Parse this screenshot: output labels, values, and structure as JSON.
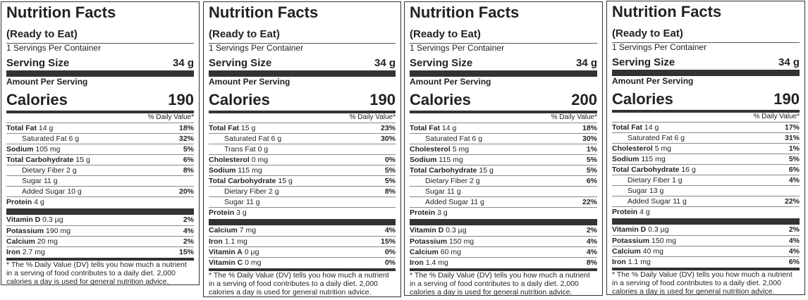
{
  "panels": [
    {
      "title": "Nutrition Facts",
      "subtitle": "(Ready to Eat)",
      "servings_per_container": "1 Servings Per Container",
      "serving_size_label": "Serving Size",
      "serving_size_value": "34 g",
      "amount_per_serving": "Amount Per Serving",
      "calories_label": "Calories",
      "calories_value": "190",
      "dv_header": "% Daily Value*",
      "nutrients": [
        {
          "name": "Total Fat",
          "amount": "14 g",
          "pct": "18%",
          "bold": true
        },
        {
          "name": "Saturated Fat",
          "amount": "6 g",
          "pct": "32%",
          "bold": false
        },
        {
          "name": "Sodium",
          "amount": "105 mg",
          "pct": "5%",
          "bold": true
        },
        {
          "name": "Total Carbohydrate",
          "amount": "15 g",
          "pct": "6%",
          "bold": true
        },
        {
          "name": "Dietary Fiber",
          "amount": "2 g",
          "pct": "8%",
          "bold": false
        },
        {
          "name": "Sugar",
          "amount": "11 g",
          "pct": "",
          "bold": false
        },
        {
          "name": "Added Sugar",
          "amount": "10 g",
          "pct": "20%",
          "bold": false
        },
        {
          "name": "Protein",
          "amount": "4 g",
          "pct": "",
          "bold": true
        }
      ],
      "vitamins": [
        {
          "name": "Vitamin D",
          "amount": "0.3 µg",
          "pct": "2%"
        },
        {
          "name": "Potassium",
          "amount": "190 mg",
          "pct": "4%"
        },
        {
          "name": "Calcium",
          "amount": "20 mg",
          "pct": "2%"
        },
        {
          "name": "Iron",
          "amount": "2.7 mg",
          "pct": "15%"
        }
      ],
      "footnote": "* The % Daily Value (DV) tells you how much a nutrient in a serving of food contributes to a daily diet. 2,000 calories a day is used for general nutrition advice."
    },
    {
      "title": "Nutrition Facts",
      "subtitle": "(Ready to Eat)",
      "servings_per_container": "1 Servings Per Container",
      "serving_size_label": "Serving Size",
      "serving_size_value": "34 g",
      "amount_per_serving": "Amount Per Serving",
      "calories_label": "Calories",
      "calories_value": "190",
      "dv_header": "% Daily Value*",
      "nutrients": [
        {
          "name": "Total Fat",
          "amount": "15 g",
          "pct": "23%",
          "bold": true
        },
        {
          "name": "Saturated Fat",
          "amount": "6 g",
          "pct": "30%",
          "bold": false
        },
        {
          "name": "Trans Fat",
          "amount": "0 g",
          "pct": "",
          "bold": false
        },
        {
          "name": "Cholesterol",
          "amount": "0 mg",
          "pct": "0%",
          "bold": true
        },
        {
          "name": "Sodium",
          "amount": "115 mg",
          "pct": "5%",
          "bold": true
        },
        {
          "name": "Total Carbohydrate",
          "amount": "15 g",
          "pct": "5%",
          "bold": true
        },
        {
          "name": "Dietary Fiber",
          "amount": "2 g",
          "pct": "8%",
          "bold": false
        },
        {
          "name": "Sugar",
          "amount": "11 g",
          "pct": "",
          "bold": false
        },
        {
          "name": "Protein",
          "amount": "3 g",
          "pct": "",
          "bold": true
        }
      ],
      "vitamins": [
        {
          "name": "Calcium",
          "amount": "7 mg",
          "pct": "4%"
        },
        {
          "name": "Iron",
          "amount": "1.1 mg",
          "pct": "15%"
        },
        {
          "name": "Vitamin A",
          "amount": "0 µg",
          "pct": "0%"
        },
        {
          "name": "Vitamin C",
          "amount": "0 mg",
          "pct": "0%"
        }
      ],
      "footnote": "* The % Daily Value (DV) tells you how much a nutrient in a serving of food contributes to a daily diet. 2,000 calories a day is used for general nutrition advice."
    },
    {
      "title": "Nutrition Facts",
      "subtitle": "(Ready to Eat)",
      "servings_per_container": "1 Servings Per Container",
      "serving_size_label": "Serving Size",
      "serving_size_value": "34 g",
      "amount_per_serving": "Amount Per Serving",
      "calories_label": "Calories",
      "calories_value": "200",
      "dv_header": "% Daily Value*",
      "nutrients": [
        {
          "name": "Total Fat",
          "amount": "14 g",
          "pct": "18%",
          "bold": true
        },
        {
          "name": "Saturated Fat",
          "amount": "6 g",
          "pct": "30%",
          "bold": false
        },
        {
          "name": "Cholesterol",
          "amount": "5 mg",
          "pct": "1%",
          "bold": true
        },
        {
          "name": "Sodium",
          "amount": "115 mg",
          "pct": "5%",
          "bold": true
        },
        {
          "name": "Total Carbohydrate",
          "amount": "15 g",
          "pct": "5%",
          "bold": true
        },
        {
          "name": "Dietary Fiber",
          "amount": "2 g",
          "pct": "6%",
          "bold": false
        },
        {
          "name": "Sugar",
          "amount": "11 g",
          "pct": "",
          "bold": false
        },
        {
          "name": "Added Sugar",
          "amount": "11 g",
          "pct": "22%",
          "bold": false
        },
        {
          "name": "Protein",
          "amount": "3 g",
          "pct": "",
          "bold": true
        }
      ],
      "vitamins": [
        {
          "name": "Vitamin D",
          "amount": "0.3 µg",
          "pct": "2%"
        },
        {
          "name": "Potassium",
          "amount": "150 mg",
          "pct": "4%"
        },
        {
          "name": "Calcium",
          "amount": "60 mg",
          "pct": "4%"
        },
        {
          "name": "Iron",
          "amount": "1.4 mg",
          "pct": "8%"
        }
      ],
      "footnote": "* The % Daily Value (DV) tells you how much a nutrient in a serving of food contributes to a daily diet. 2,000 calories a day is used for general nutrition advice."
    },
    {
      "title": "Nutrition Facts",
      "subtitle": "(Ready to Eat)",
      "servings_per_container": "1 Servings Per Container",
      "serving_size_label": "Serving Size",
      "serving_size_value": "34 g",
      "amount_per_serving": "Amount Per Serving",
      "calories_label": "Calories",
      "calories_value": "190",
      "dv_header": "% Daily Value*",
      "nutrients": [
        {
          "name": "Total Fat",
          "amount": "14 g",
          "pct": "17%",
          "bold": true
        },
        {
          "name": "Saturated Fat",
          "amount": "6 g",
          "pct": "31%",
          "bold": false
        },
        {
          "name": "Cholesterol",
          "amount": "5 mg",
          "pct": "1%",
          "bold": true
        },
        {
          "name": "Sodium",
          "amount": "115 mg",
          "pct": "5%",
          "bold": true
        },
        {
          "name": "Total Carbohydrate",
          "amount": "16 g",
          "pct": "6%",
          "bold": true
        },
        {
          "name": "Dietary Fiber",
          "amount": "1 g",
          "pct": "4%",
          "bold": false
        },
        {
          "name": "Sugar",
          "amount": "13 g",
          "pct": "",
          "bold": false
        },
        {
          "name": "Added Sugar",
          "amount": "11 g",
          "pct": "22%",
          "bold": false
        },
        {
          "name": "Protein",
          "amount": "4 g",
          "pct": "",
          "bold": true
        }
      ],
      "vitamins": [
        {
          "name": "Vitamin D",
          "amount": "0.3 µg",
          "pct": "2%"
        },
        {
          "name": "Potassium",
          "amount": "150 mg",
          "pct": "4%"
        },
        {
          "name": "Calcium",
          "amount": "40 mg",
          "pct": "4%"
        },
        {
          "name": "Iron",
          "amount": "1.1 mg",
          "pct": "6%"
        }
      ],
      "footnote": "* The % Daily Value (DV) tells you how much a nutrient in a serving of food contributes to a daily diet. 2,000 calories a day is used for general nutrition advice."
    }
  ]
}
